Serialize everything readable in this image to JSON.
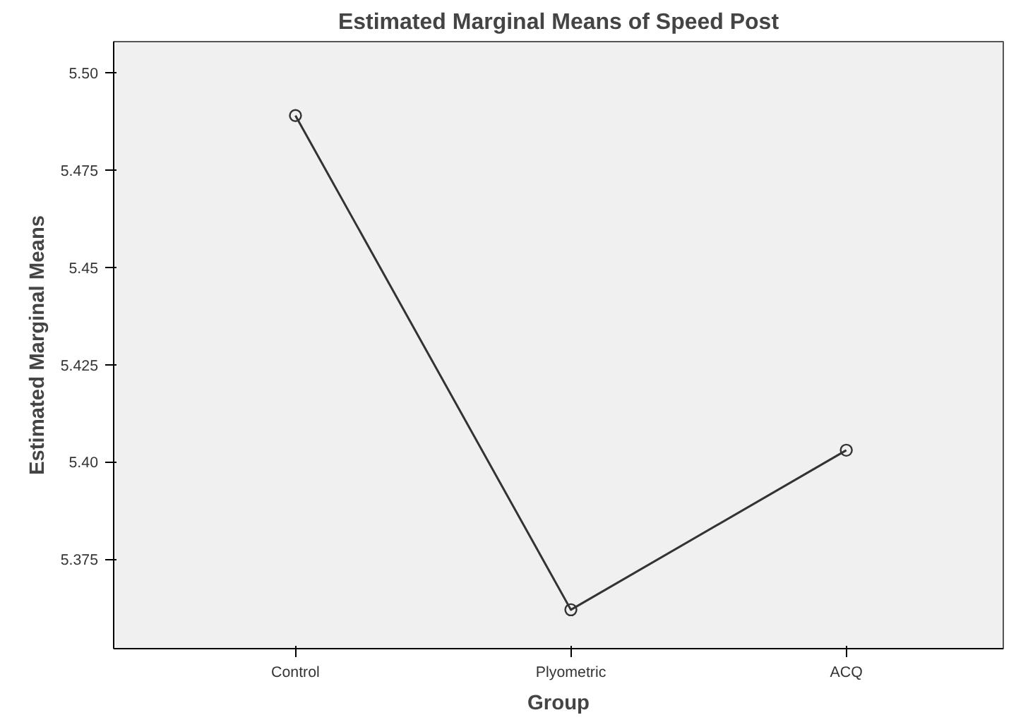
{
  "chart_data": {
    "type": "line",
    "title": "Estimated Marginal Means of Speed Post",
    "xlabel": "Group",
    "ylabel": "Estimated Marginal Means",
    "categories": [
      "Control",
      "Plyometric",
      "ACQ"
    ],
    "series": [
      {
        "color": "#333333",
        "values": [
          5.489,
          5.362,
          5.403
        ]
      }
    ],
    "ylim": [
      5.352,
      5.508
    ],
    "yticks": [
      {
        "value": 5.375,
        "label": "5.375"
      },
      {
        "value": 5.4,
        "label": "5.40"
      },
      {
        "value": 5.425,
        "label": "5.425"
      },
      {
        "value": 5.45,
        "label": "5.45"
      },
      {
        "value": 5.475,
        "label": "5.475"
      },
      {
        "value": 5.5,
        "label": "5.50"
      }
    ],
    "grid": false,
    "marker": "circle",
    "line_style": "solid"
  }
}
